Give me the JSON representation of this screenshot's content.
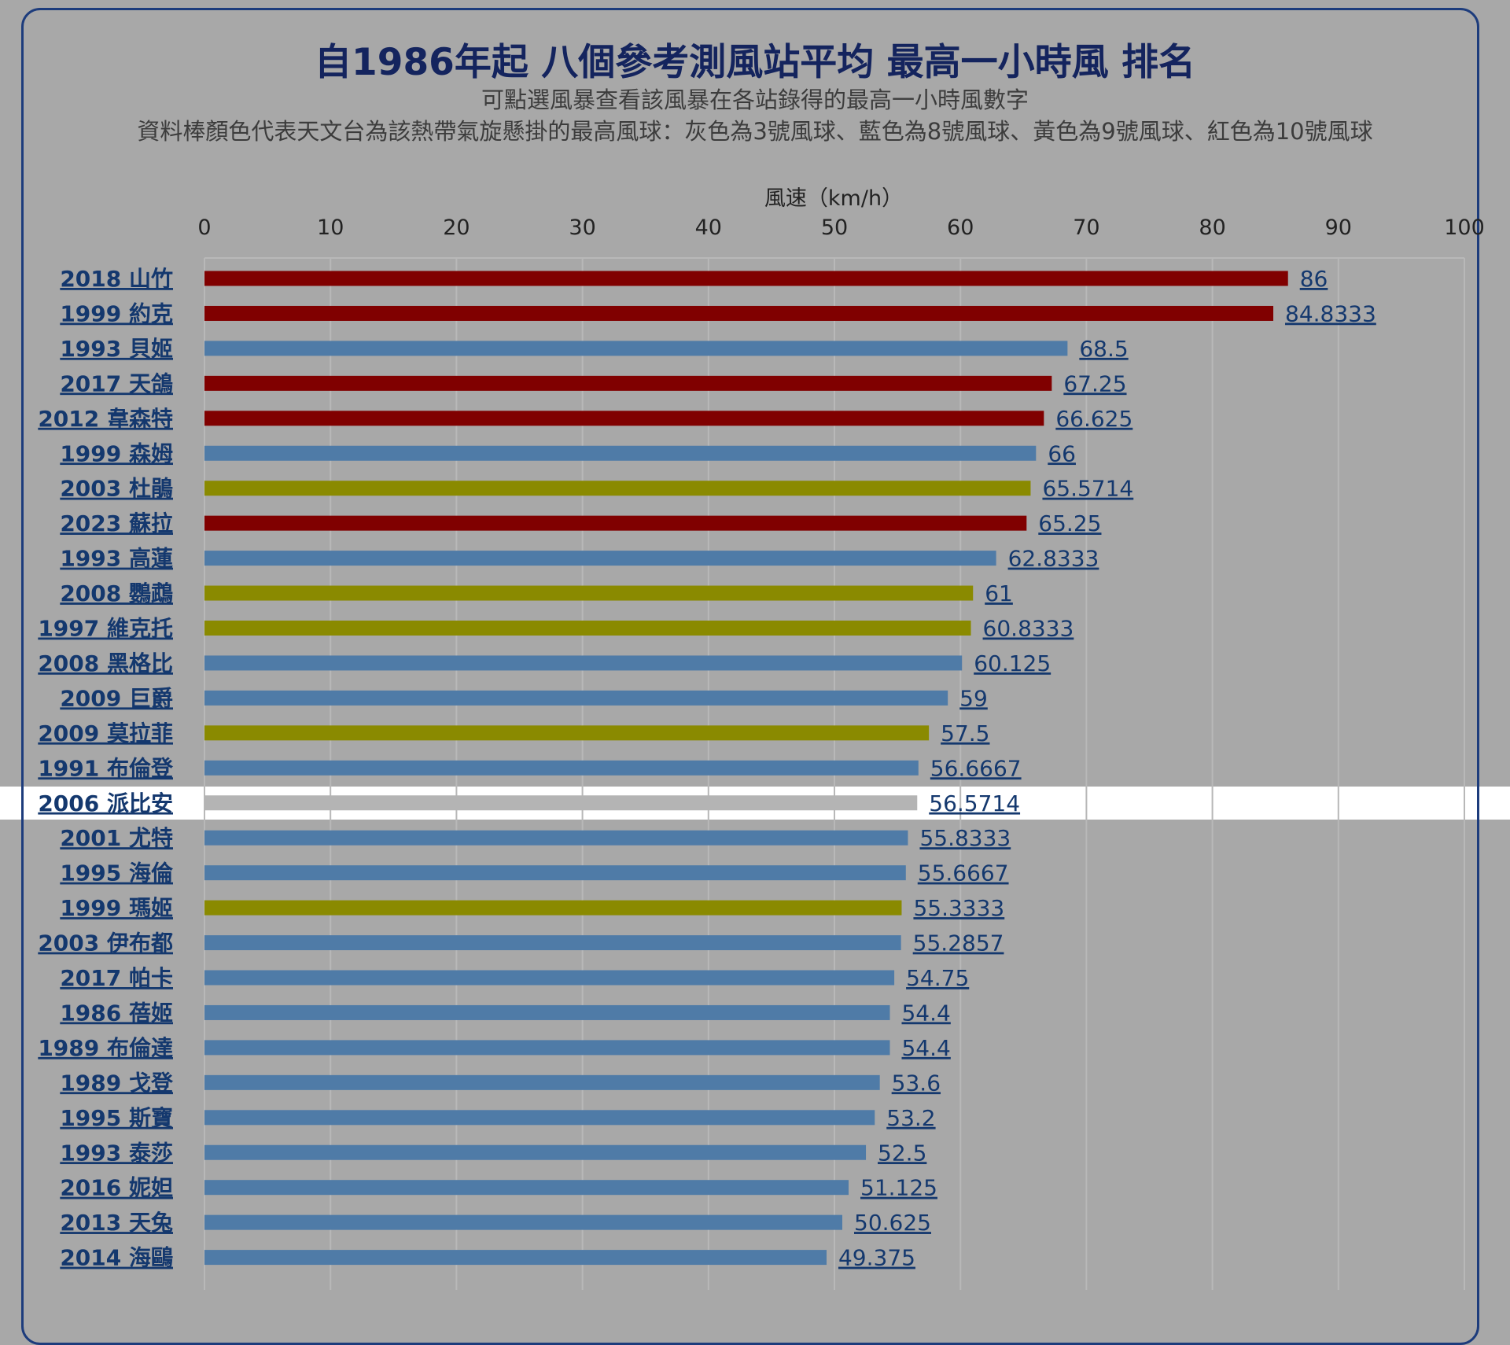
{
  "page": {
    "title": "自1986年起 八個參考測風站平均 最高一小時風 排名",
    "subtitle1": "可點選風暴查看該風暴在各站錄得的最高一小時風數字",
    "subtitle2": "資料棒顏色代表天文台為該熱帶氣旋懸掛的最高風球：灰色為3號風球、藍色為8號風球、黃色為9號風球、紅色為10號風球"
  },
  "colors": {
    "background": "#a8a8a8",
    "border": "#1d3c7c",
    "signal_3": "#b4b4b4",
    "signal_8": "#4f7ba7",
    "signal_9": "#8a8a00",
    "signal_10": "#800000",
    "highlight_row": "#ffffff",
    "label": "#14386e"
  },
  "chart_data": {
    "type": "bar",
    "orientation": "horizontal",
    "xlabel": "風速（km/h）",
    "xlim": [
      0,
      100
    ],
    "xticks": [
      0,
      10,
      20,
      30,
      40,
      50,
      60,
      70,
      80,
      90,
      100
    ],
    "grid": true,
    "highlighted_category": "2006 派比安",
    "categories": [
      "2018 山竹",
      "1999 約克",
      "1993 貝姬",
      "2017 天鴿",
      "2012 韋森特",
      "1999 森姆",
      "2003 杜鵑",
      "2023 蘇拉",
      "1993 高蓮",
      "2008 鸚鵡",
      "1997 維克托",
      "2008 黑格比",
      "2009 巨爵",
      "2009 莫拉菲",
      "1991 布倫登",
      "2006 派比安",
      "2001 尤特",
      "1995 海倫",
      "1999 瑪姬",
      "2003 伊布都",
      "2017 帕卡",
      "1986 蓓姬",
      "1989 布倫達",
      "1989 戈登",
      "1995 斯寶",
      "1993 泰莎",
      "2016 妮妲",
      "2013 天兔",
      "2014 海鷗"
    ],
    "value_labels": [
      "86",
      "84.8333",
      "68.5",
      "67.25",
      "66.625",
      "66",
      "65.5714",
      "65.25",
      "62.8333",
      "61",
      "60.8333",
      "60.125",
      "59",
      "57.5",
      "56.6667",
      "56.5714",
      "55.8333",
      "55.6667",
      "55.3333",
      "55.2857",
      "54.75",
      "54.4",
      "54.4",
      "53.6",
      "53.2",
      "52.5",
      "51.125",
      "50.625",
      "49.375"
    ],
    "values": [
      86,
      84.8333,
      68.5,
      67.25,
      66.625,
      66,
      65.5714,
      65.25,
      62.8333,
      61,
      60.8333,
      60.125,
      59,
      57.5,
      56.6667,
      56.5714,
      55.8333,
      55.6667,
      55.3333,
      55.2857,
      54.75,
      54.4,
      54.4,
      53.6,
      53.2,
      52.5,
      51.125,
      50.625,
      49.375
    ],
    "signal": [
      10,
      10,
      8,
      10,
      10,
      8,
      9,
      10,
      8,
      9,
      9,
      8,
      8,
      9,
      8,
      3,
      8,
      8,
      9,
      8,
      8,
      8,
      8,
      8,
      8,
      8,
      8,
      8,
      8
    ]
  }
}
